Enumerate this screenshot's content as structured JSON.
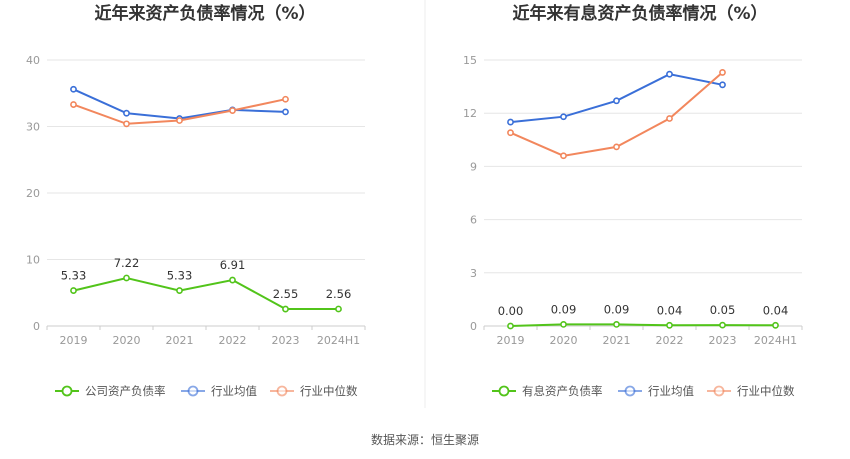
{
  "colors": {
    "company": "#52c41a",
    "avg": "#3a6fd8",
    "median": "#f2875d"
  },
  "source": "数据来源：恒生聚源",
  "chart_data": [
    {
      "type": "line",
      "title": "近年来资产负债率情况（%）",
      "categories": [
        "2019",
        "2020",
        "2021",
        "2022",
        "2023",
        "2024H1"
      ],
      "ylim": [
        0,
        40
      ],
      "yticks": [
        "0",
        "10",
        "20",
        "30",
        "40"
      ],
      "grid": true,
      "legend_position": "bottom",
      "series": [
        {
          "name": "公司资产负债率",
          "values": [
            5.33,
            7.22,
            5.33,
            6.91,
            2.55,
            2.56
          ],
          "labels": [
            "5.33",
            "7.22",
            "5.33",
            "6.91",
            "2.55",
            "2.56"
          ]
        },
        {
          "name": "行业均值",
          "values": [
            35.6,
            32.0,
            31.2,
            32.5,
            32.2,
            null
          ]
        },
        {
          "name": "行业中位数",
          "values": [
            33.3,
            30.4,
            30.9,
            32.4,
            34.1,
            null
          ]
        }
      ]
    },
    {
      "type": "line",
      "title": "近年来有息资产负债率情况（%）",
      "categories": [
        "2019",
        "2020",
        "2021",
        "2022",
        "2023",
        "2024H1"
      ],
      "ylim": [
        0,
        15
      ],
      "yticks": [
        "0",
        "3",
        "6",
        "9",
        "12",
        "15"
      ],
      "grid": true,
      "legend_position": "bottom",
      "series": [
        {
          "name": "有息资产负债率",
          "values": [
            0.0,
            0.09,
            0.09,
            0.04,
            0.05,
            0.04
          ],
          "labels": [
            "0.00",
            "0.09",
            "0.09",
            "0.04",
            "0.05",
            "0.04"
          ]
        },
        {
          "name": "行业均值",
          "values": [
            11.5,
            11.8,
            12.7,
            14.2,
            13.6,
            null
          ]
        },
        {
          "name": "行业中位数",
          "values": [
            10.9,
            9.6,
            10.1,
            11.7,
            14.3,
            null
          ]
        }
      ]
    }
  ]
}
